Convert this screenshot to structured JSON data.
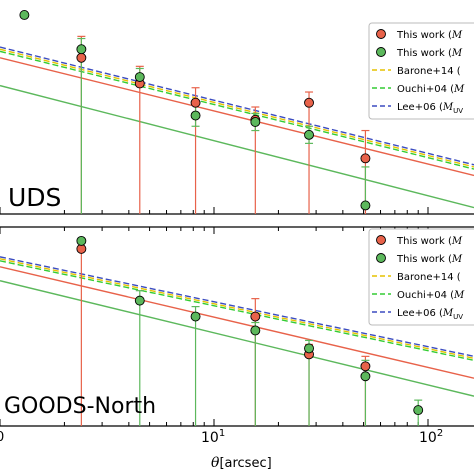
{
  "chart_data": [
    {
      "type": "scatter",
      "panel_label": "UDS",
      "xscale": "log",
      "xlim": [
        1,
        150
      ],
      "ylim": [
        0,
        1
      ],
      "series": [
        {
          "name": "This work (M",
          "color": "#e8624a",
          "points": [
            {
              "x": 2.4,
              "y": 0.73,
              "err_up": 0.1,
              "reaches_bottom": true
            },
            {
              "x": 4.5,
              "y": 0.61,
              "err_up": 0.08,
              "reaches_bottom": true
            },
            {
              "x": 8.2,
              "y": 0.52,
              "err_up": 0.07,
              "reaches_bottom": true
            },
            {
              "x": 15.6,
              "y": 0.44,
              "err_up": 0.06,
              "reaches_bottom": true
            },
            {
              "x": 27.8,
              "y": 0.52,
              "err_up": 0.05,
              "reaches_bottom": true
            },
            {
              "x": 51.0,
              "y": 0.26,
              "err_up": 0.13,
              "reaches_bottom": true
            }
          ]
        },
        {
          "name": "This work (M",
          "color": "#5cb85c",
          "points": [
            {
              "x": 1.3,
              "y": 0.93
            },
            {
              "x": 2.4,
              "y": 0.77,
              "err_up": 0.05,
              "reaches_bottom": true
            },
            {
              "x": 4.5,
              "y": 0.64,
              "err_up": 0.04,
              "err_down": 0.04
            },
            {
              "x": 8.2,
              "y": 0.46,
              "err_up": 0.05,
              "err_down": 0.05
            },
            {
              "x": 15.6,
              "y": 0.43,
              "err_up": 0.04,
              "err_down": 0.04
            },
            {
              "x": 27.8,
              "y": 0.37,
              "err_up": 0.04,
              "err_down": 0.04
            },
            {
              "x": 51.0,
              "y": 0.04,
              "err_up": 0.18
            }
          ]
        }
      ],
      "lines": [
        {
          "name": "Barone+14 (",
          "color": "#e6c200",
          "style": "dashed",
          "y_start": 0.77,
          "y_end": 0.22
        },
        {
          "name": "Ouchi+04 (M",
          "color": "#33cc33",
          "style": "dashed",
          "y_start": 0.76,
          "y_end": 0.21
        },
        {
          "name": "Lee+06 (M",
          "color": "#3b4cc0",
          "style": "dashed",
          "y_start": 0.78,
          "y_end": 0.23
        },
        {
          "color": "#e8624a",
          "style": "solid",
          "y_start": 0.73,
          "y_end": 0.18
        },
        {
          "color": "#5cb85c",
          "style": "solid",
          "y_start": 0.6,
          "y_end": 0.03
        }
      ],
      "legend_position": "top-right"
    },
    {
      "type": "scatter",
      "panel_label": "GOODS-North",
      "xscale": "log",
      "xlim": [
        1,
        150
      ],
      "ylim": [
        0,
        1
      ],
      "series": [
        {
          "name": "This work (M",
          "color": "#e8624a",
          "points": [
            {
              "x": 2.4,
              "y": 0.89,
              "reaches_bottom": true,
              "err_up": 0.0
            },
            {
              "x": 15.6,
              "y": 0.55,
              "err_up": 0.09,
              "reaches_bottom": true
            },
            {
              "x": 27.8,
              "y": 0.36,
              "err_up": 0.05,
              "reaches_bottom": true
            },
            {
              "x": 51.0,
              "y": 0.3,
              "err_up": 0.05,
              "reaches_bottom": true
            }
          ]
        },
        {
          "name": "This work (M",
          "color": "#5cb85c",
          "points": [
            {
              "x": 2.4,
              "y": 0.93
            },
            {
              "x": 4.5,
              "y": 0.63,
              "err_up": 0.05,
              "reaches_bottom": true
            },
            {
              "x": 8.2,
              "y": 0.55,
              "err_up": 0.05,
              "reaches_bottom": true
            },
            {
              "x": 15.6,
              "y": 0.48,
              "err_up": 0.04,
              "reaches_bottom": true
            },
            {
              "x": 27.8,
              "y": 0.39,
              "err_up": 0.04,
              "reaches_bottom": true
            },
            {
              "x": 51.0,
              "y": 0.25,
              "err_up": 0.08,
              "reaches_bottom": true
            },
            {
              "x": 90.0,
              "y": 0.08,
              "err_up": 0.05,
              "reaches_bottom": true
            }
          ]
        }
      ],
      "lines": [
        {
          "name": "Barone+14 (",
          "color": "#e6c200",
          "style": "dashed",
          "y_start": 0.84,
          "y_end": 0.34
        },
        {
          "name": "Ouchi+04 (M",
          "color": "#33cc33",
          "style": "dashed",
          "y_start": 0.83,
          "y_end": 0.33
        },
        {
          "name": "Lee+06 (M",
          "color": "#3b4cc0",
          "style": "dashed",
          "y_start": 0.85,
          "y_end": 0.35
        },
        {
          "color": "#e8624a",
          "style": "solid",
          "y_start": 0.8,
          "y_end": 0.24
        },
        {
          "color": "#5cb85c",
          "style": "solid",
          "y_start": 0.73,
          "y_end": 0.15
        }
      ],
      "legend_position": "top-right"
    }
  ],
  "x_axis": {
    "label_theta": "θ",
    "label_unit": "[arcsec]",
    "tick_labels": [
      {
        "value": 1,
        "text": "0",
        "partial": true
      },
      {
        "value": 10,
        "base": "10",
        "exp": "1"
      },
      {
        "value": 100,
        "base": "10",
        "exp": "2"
      }
    ]
  },
  "legend_uds": {
    "entries": [
      {
        "text": "This work (",
        "sym": "M",
        "sub": "",
        "kind": "marker",
        "color": "#e8624a"
      },
      {
        "text": "This work (",
        "sym": "M",
        "sub": "",
        "kind": "marker",
        "color": "#5cb85c"
      },
      {
        "text": "Barone+14 (",
        "sym": "",
        "sub": "",
        "kind": "dash",
        "color": "#e6c200"
      },
      {
        "text": "Ouchi+04 (",
        "sym": "M",
        "sub": "",
        "kind": "dash",
        "color": "#33cc33"
      },
      {
        "text": "Lee+06 (",
        "sym": "M",
        "sub": "UV",
        "kind": "dash",
        "color": "#3b4cc0"
      }
    ]
  },
  "legend_goods": {
    "entries": [
      {
        "text": "This work (",
        "sym": "M",
        "sub": "",
        "kind": "marker",
        "color": "#e8624a"
      },
      {
        "text": "This work (",
        "sym": "M",
        "sub": "",
        "kind": "marker",
        "color": "#5cb85c"
      },
      {
        "text": "Barone+14 (",
        "sym": "",
        "sub": "",
        "kind": "dash",
        "color": "#e6c200"
      },
      {
        "text": "Ouchi+04 (",
        "sym": "M",
        "sub": "",
        "kind": "dash",
        "color": "#33cc33"
      },
      {
        "text": "Lee+06 (",
        "sym": "M",
        "sub": "UV",
        "kind": "dash",
        "color": "#3b4cc0"
      }
    ]
  }
}
